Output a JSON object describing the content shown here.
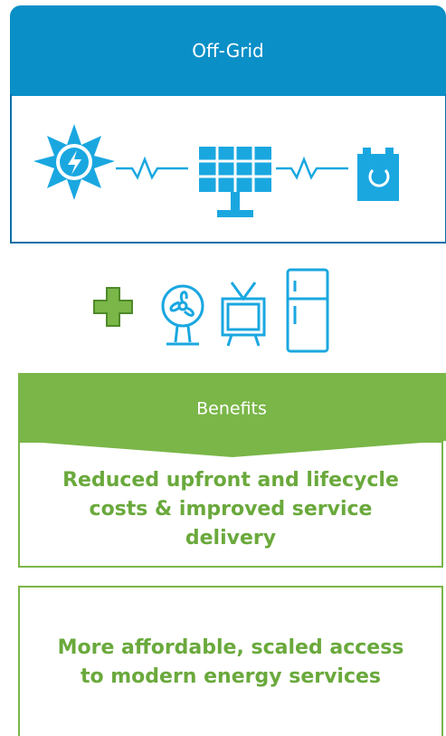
{
  "header": {
    "title": "Off-Grid"
  },
  "benefits": {
    "title": "Benefits",
    "items": [
      "Reduced upfront and lifecycle costs & improved service delivery",
      "More affordable, scaled access to modern energy services"
    ]
  }
}
